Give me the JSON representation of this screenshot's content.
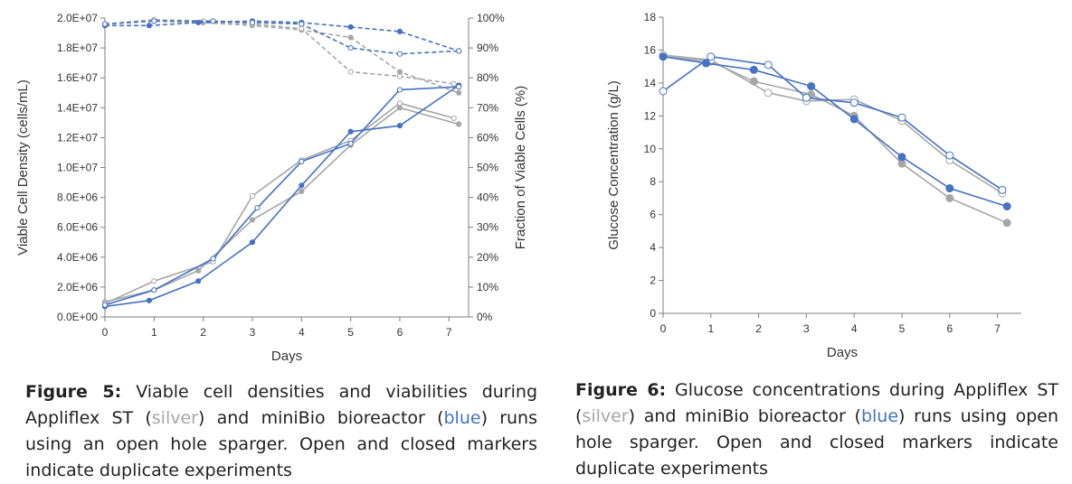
{
  "figure5": {
    "caption_label": "Figure 5:",
    "caption_parts": [
      " Viable cell densities and viabilities during Appliflex ST (",
      "silver",
      ") and miniBio bioreactor (",
      "blue",
      ") runs using an open hole sparger. Open and closed markers indicate duplicate experiments"
    ]
  },
  "figure6": {
    "caption_label": "Figure 6:",
    "caption_parts": [
      " Glucose concentrations during Appliflex ST (",
      "silver",
      ") and miniBio bioreactor (",
      "blue",
      ") runs using open hole sparger. Open and closed markers indicate duplicate experiments"
    ]
  },
  "colors": {
    "silver": "#a6a6a6",
    "blue": "#4472c4"
  },
  "chart_data": [
    {
      "type": "line",
      "xlabel": "Days",
      "ylabel": "Viable Cell Density (cells/mL)",
      "y2label": "Fraction of Viable Cells (%)",
      "xlim": [
        0,
        7.4
      ],
      "ylim": [
        0,
        20000000
      ],
      "y2lim": [
        0,
        100
      ],
      "x_ticks": [
        "0",
        "1",
        "2",
        "3",
        "4",
        "5",
        "6",
        "7"
      ],
      "y_ticks": [
        "0.0E+00",
        "2.0E+06",
        "4.0E+06",
        "6.0E+06",
        "8.0E+06",
        "1.0E+07",
        "1.2E+07",
        "1.4E+07",
        "1.6E+07",
        "1.8E+07",
        "2.0E+07"
      ],
      "y2_ticks": [
        "0%",
        "10%",
        "20%",
        "30%",
        "40%",
        "50%",
        "60%",
        "70%",
        "80%",
        "90%",
        "100%"
      ],
      "series": [
        {
          "color": "silver",
          "marker": "closed",
          "axis": "left",
          "style": "solid",
          "x": [
            0,
            1,
            1.9,
            3,
            4,
            5,
            6,
            7.2
          ],
          "y": [
            1000000,
            1800000,
            3100000,
            6500000,
            8400000,
            11500000,
            14000000,
            12900000
          ]
        },
        {
          "color": "silver",
          "marker": "open",
          "axis": "left",
          "style": "solid",
          "x": [
            0,
            1,
            2.2,
            3,
            4,
            5,
            6,
            7.1
          ],
          "y": [
            900000,
            2400000,
            3700000,
            8100000,
            10500000,
            11800000,
            14300000,
            13300000
          ]
        },
        {
          "color": "blue",
          "marker": "closed",
          "axis": "left",
          "style": "solid",
          "x": [
            0,
            0.9,
            1.9,
            3,
            4,
            5,
            6,
            7.2
          ],
          "y": [
            700000,
            1100000,
            2400000,
            5000000,
            8800000,
            12400000,
            12800000,
            15500000
          ]
        },
        {
          "color": "blue",
          "marker": "open",
          "axis": "left",
          "style": "solid",
          "x": [
            0,
            1,
            2.2,
            3.1,
            4,
            5,
            6,
            7.2
          ],
          "y": [
            800000,
            1800000,
            3900000,
            7300000,
            10400000,
            11600000,
            15200000,
            15400000
          ]
        },
        {
          "color": "silver",
          "marker": "closed",
          "axis": "right",
          "style": "dashed",
          "x": [
            0,
            1,
            2,
            3,
            4,
            5,
            6,
            7.2
          ],
          "y": [
            98,
            99,
            98.5,
            97.5,
            96,
            93.5,
            82,
            75
          ]
        },
        {
          "color": "silver",
          "marker": "open",
          "axis": "right",
          "style": "dashed",
          "x": [
            0,
            1,
            2,
            3,
            4,
            5,
            6,
            7.1
          ],
          "y": [
            98,
            99.5,
            99,
            98,
            96.5,
            82,
            80.5,
            78
          ]
        },
        {
          "color": "blue",
          "marker": "closed",
          "axis": "right",
          "style": "dashed",
          "x": [
            0,
            0.9,
            1.9,
            3,
            4,
            5,
            6,
            7.2
          ],
          "y": [
            97.5,
            97.5,
            98.5,
            99,
            98.5,
            97,
            95.5,
            89
          ]
        },
        {
          "color": "blue",
          "marker": "open",
          "axis": "right",
          "style": "dashed",
          "x": [
            0,
            1,
            2.2,
            3,
            4,
            5,
            6,
            7.2
          ],
          "y": [
            98,
            99,
            99,
            98.5,
            98,
            90,
            88,
            89
          ]
        }
      ]
    },
    {
      "type": "line",
      "xlabel": "Days",
      "ylabel": "Glucose Concentration (g/L)",
      "xlim": [
        0,
        7.5
      ],
      "ylim": [
        0,
        18
      ],
      "x_ticks": [
        "0",
        "1",
        "2",
        "3",
        "4",
        "5",
        "6",
        "7"
      ],
      "y_ticks": [
        "0",
        "2",
        "4",
        "6",
        "8",
        "10",
        "12",
        "14",
        "16",
        "18"
      ],
      "series": [
        {
          "color": "silver",
          "marker": "closed",
          "x": [
            0,
            1,
            1.9,
            3.1,
            4,
            5,
            6,
            7.2
          ],
          "y": [
            15.6,
            15.3,
            14.1,
            13.3,
            12,
            9.1,
            7,
            5.5
          ]
        },
        {
          "color": "silver",
          "marker": "open",
          "x": [
            0,
            1,
            2.2,
            3,
            4,
            5,
            6,
            7.1
          ],
          "y": [
            15.7,
            15.4,
            13.4,
            12.9,
            13,
            11.7,
            9.3,
            7.3
          ]
        },
        {
          "color": "blue",
          "marker": "closed",
          "x": [
            0,
            0.9,
            1.9,
            3.1,
            4,
            5,
            6,
            7.2
          ],
          "y": [
            15.6,
            15.2,
            14.8,
            13.8,
            11.8,
            9.5,
            7.6,
            6.5
          ]
        },
        {
          "color": "blue",
          "marker": "open",
          "x": [
            0,
            1,
            2.2,
            3,
            4,
            5,
            6,
            7.1
          ],
          "y": [
            13.5,
            15.6,
            15.1,
            13.1,
            12.8,
            11.9,
            9.6,
            7.5
          ]
        }
      ]
    }
  ]
}
